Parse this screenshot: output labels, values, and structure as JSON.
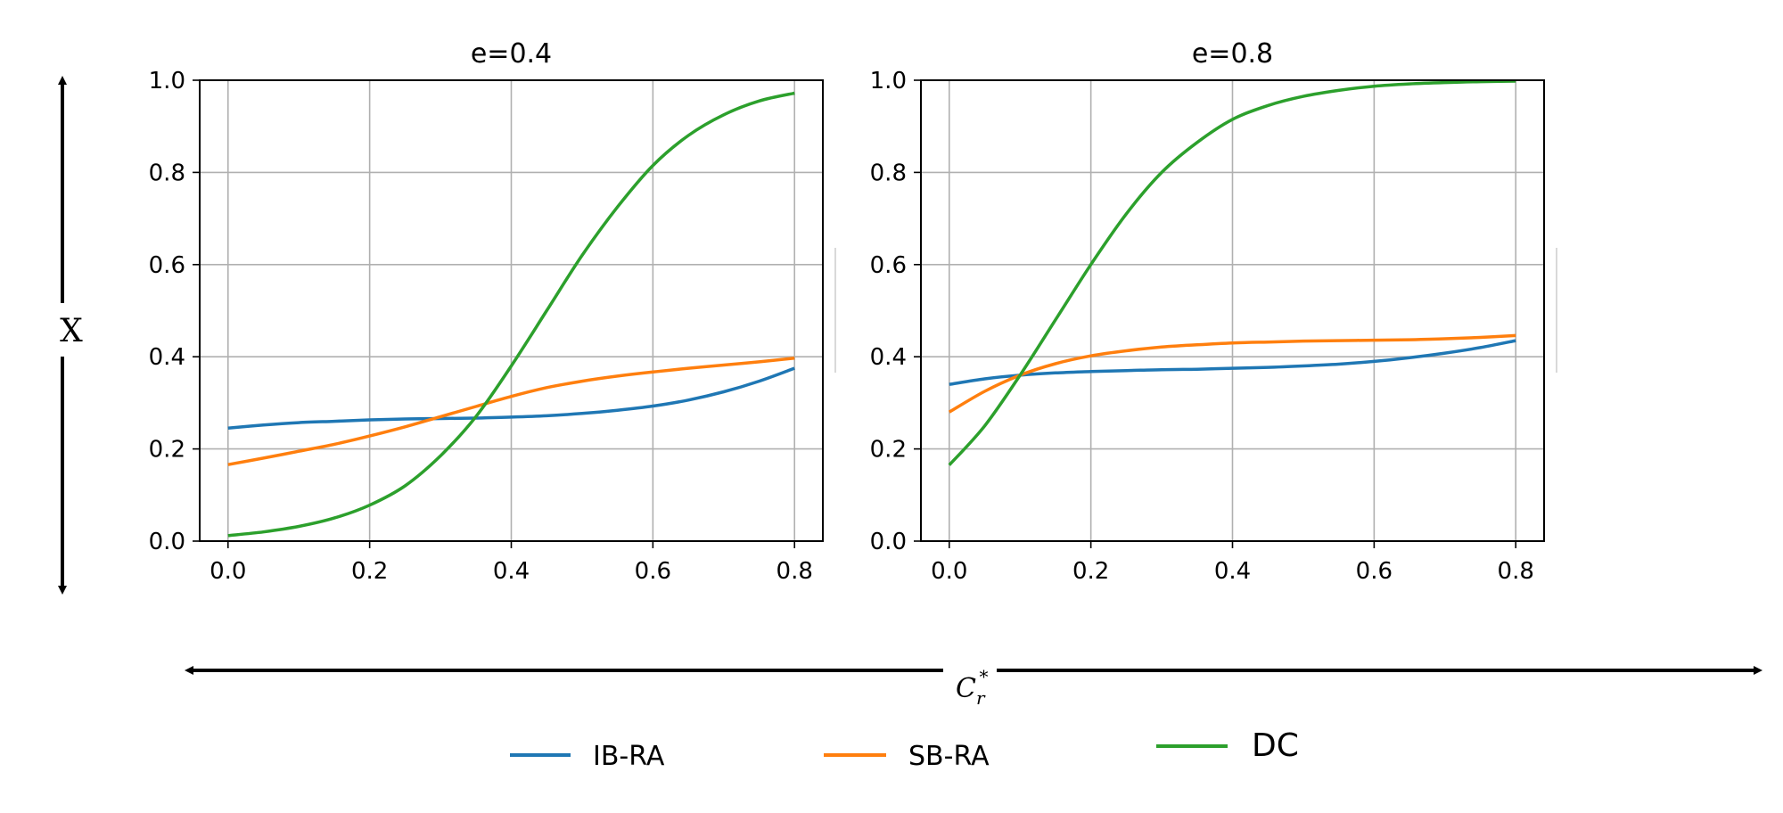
{
  "chart_data": [
    {
      "type": "line",
      "title": "e=0.4",
      "xlim": [
        -0.04,
        0.84
      ],
      "ylim": [
        0.0,
        1.0
      ],
      "xticks": [
        "0.0",
        "0.2",
        "0.4",
        "0.6",
        "0.8"
      ],
      "yticks": [
        "0.0",
        "0.2",
        "0.4",
        "0.6",
        "0.8",
        "1.0"
      ],
      "grid": true,
      "x": [
        0.0,
        0.05,
        0.1,
        0.15,
        0.2,
        0.25,
        0.3,
        0.35,
        0.4,
        0.45,
        0.5,
        0.55,
        0.6,
        0.65,
        0.7,
        0.75,
        0.8
      ],
      "series": [
        {
          "name": "IB-RA",
          "color": "#1f77b4",
          "values": [
            0.245,
            0.252,
            0.257,
            0.26,
            0.263,
            0.265,
            0.266,
            0.267,
            0.269,
            0.272,
            0.277,
            0.284,
            0.293,
            0.306,
            0.324,
            0.347,
            0.375
          ]
        },
        {
          "name": "SB-RA",
          "color": "#ff7f0e",
          "values": [
            0.166,
            0.18,
            0.195,
            0.21,
            0.228,
            0.248,
            0.27,
            0.292,
            0.314,
            0.333,
            0.347,
            0.358,
            0.367,
            0.375,
            0.382,
            0.389,
            0.397
          ]
        },
        {
          "name": "DC",
          "color": "#2ca02c",
          "values": [
            0.012,
            0.02,
            0.032,
            0.05,
            0.078,
            0.12,
            0.185,
            0.27,
            0.38,
            0.5,
            0.62,
            0.725,
            0.815,
            0.88,
            0.925,
            0.955,
            0.972
          ]
        }
      ]
    },
    {
      "type": "line",
      "title": "e=0.8",
      "xlim": [
        -0.04,
        0.84
      ],
      "ylim": [
        0.0,
        1.0
      ],
      "xticks": [
        "0.0",
        "0.2",
        "0.4",
        "0.6",
        "0.8"
      ],
      "yticks": [
        "0.0",
        "0.2",
        "0.4",
        "0.6",
        "0.8",
        "1.0"
      ],
      "grid": true,
      "x": [
        0.0,
        0.05,
        0.1,
        0.15,
        0.2,
        0.25,
        0.3,
        0.35,
        0.4,
        0.45,
        0.5,
        0.55,
        0.6,
        0.65,
        0.7,
        0.75,
        0.8
      ],
      "series": [
        {
          "name": "IB-RA",
          "color": "#1f77b4",
          "values": [
            0.34,
            0.352,
            0.36,
            0.365,
            0.368,
            0.37,
            0.372,
            0.373,
            0.375,
            0.377,
            0.38,
            0.384,
            0.39,
            0.398,
            0.408,
            0.42,
            0.435
          ]
        },
        {
          "name": "SB-RA",
          "color": "#ff7f0e",
          "values": [
            0.28,
            0.325,
            0.36,
            0.385,
            0.402,
            0.413,
            0.421,
            0.426,
            0.43,
            0.432,
            0.434,
            0.435,
            0.436,
            0.437,
            0.439,
            0.442,
            0.446
          ]
        },
        {
          "name": "DC",
          "color": "#2ca02c",
          "values": [
            0.165,
            0.25,
            0.36,
            0.48,
            0.6,
            0.71,
            0.8,
            0.865,
            0.915,
            0.945,
            0.965,
            0.978,
            0.987,
            0.992,
            0.995,
            0.997,
            0.998
          ]
        }
      ]
    }
  ],
  "axes": {
    "ylabel": "X",
    "xlabel_base": "C",
    "xlabel_sub": "r",
    "xlabel_sup": "*"
  },
  "legend": {
    "entries": [
      {
        "name": "IB-RA",
        "color": "#1f77b4"
      },
      {
        "name": "SB-RA",
        "color": "#ff7f0e"
      },
      {
        "name": "DC",
        "color": "#2ca02c"
      }
    ]
  }
}
